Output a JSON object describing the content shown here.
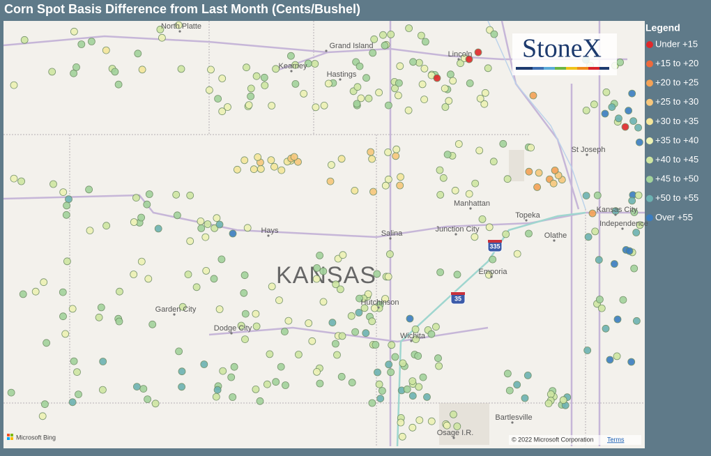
{
  "header": {
    "title": "Corn Spot Basis Difference from Last Month (Cents/Bushel)"
  },
  "legend": {
    "title": "Legend",
    "items": [
      {
        "label": "Under +15",
        "color": "#e0282a"
      },
      {
        "label": "+15 to +20",
        "color": "#ee6a3c"
      },
      {
        "label": "+20 to +25",
        "color": "#f4a256"
      },
      {
        "label": "+25 to +30",
        "color": "#f7c77c"
      },
      {
        "label": "+30 to +35",
        "color": "#f5e69a"
      },
      {
        "label": "+35 to +40",
        "color": "#edf2b4"
      },
      {
        "label": "+40 to +45",
        "color": "#cfe6a2"
      },
      {
        "label": "+45 to +50",
        "color": "#a3d39c"
      },
      {
        "label": "+50 to +55",
        "color": "#6cb2b2"
      },
      {
        "label": "Over +55",
        "color": "#3b7dc0"
      }
    ]
  },
  "map": {
    "region_label": "KANSAS",
    "places": [
      "North Platte",
      "Grand Island",
      "Kearney",
      "Hastings",
      "Lincoln",
      "St Joseph",
      "Manhattan",
      "Topeka",
      "Kansas City",
      "Independence",
      "Olathe",
      "Junction City",
      "Salina",
      "Hays",
      "Emporia",
      "Hutchinson",
      "Garden City",
      "Dodge City",
      "Wichita",
      "Bartlesville",
      "Osage I.R."
    ],
    "highways": [
      "335",
      "35"
    ]
  },
  "logo": {
    "text": "StoneX"
  },
  "attribution": {
    "provider": "Microsoft Bing",
    "copyright": "© 2022 Microsoft Corporation",
    "link": "Terms"
  }
}
